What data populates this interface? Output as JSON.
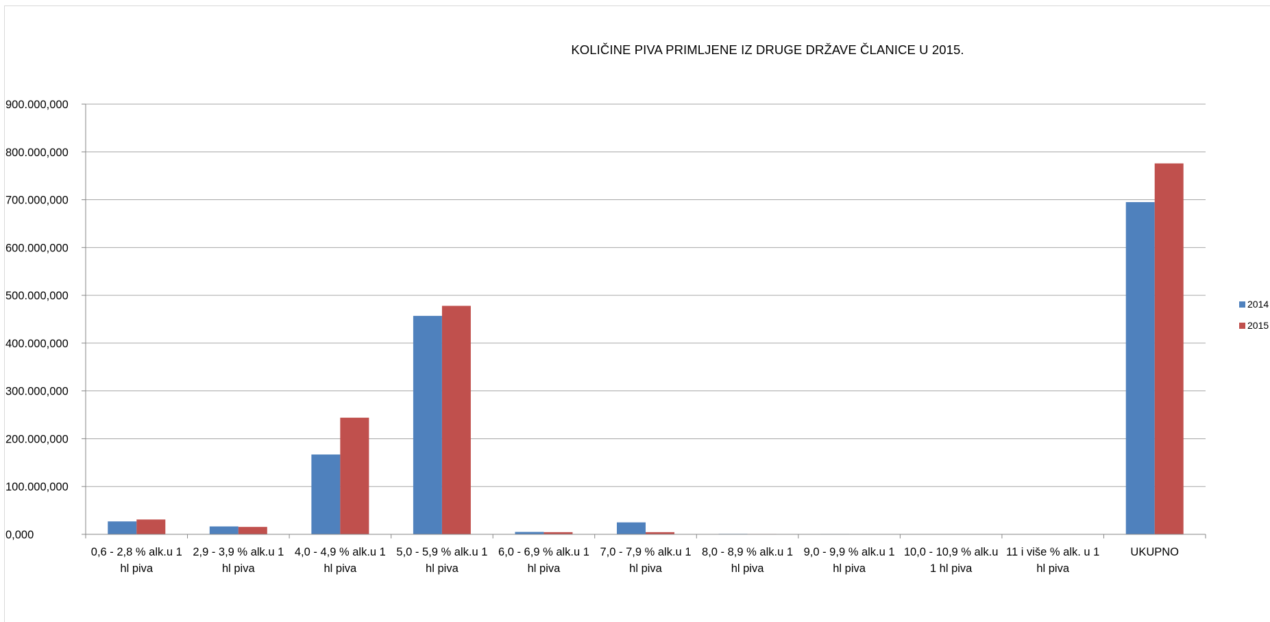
{
  "chart_data": {
    "type": "bar",
    "title": "KOLIČINE PIVA PRIMLJENE IZ DRUGE DRŽAVE ČLANICE  U 2015.",
    "xlabel": "",
    "ylabel": "",
    "ylim": [
      0,
      900000000
    ],
    "yticks": [
      0,
      100000000,
      200000000,
      300000000,
      400000000,
      500000000,
      600000000,
      700000000,
      800000000,
      900000000
    ],
    "ytick_labels": [
      "0,000",
      "100.000,000",
      "200.000,000",
      "300.000,000",
      "400.000,000",
      "500.000,000",
      "600.000,000",
      "700.000,000",
      "800.000,000",
      "900.000,000"
    ],
    "grid": true,
    "legend_position": "right",
    "categories": [
      [
        "0,6 -  2,8 % alk.u 1",
        "hl piva"
      ],
      [
        "2,9 -  3,9 % alk.u 1",
        "hl piva"
      ],
      [
        "4,0 -  4,9 % alk.u 1",
        "hl piva"
      ],
      [
        "5,0 -  5,9 % alk.u 1",
        "hl piva"
      ],
      [
        "6,0 -  6,9 % alk.u 1",
        "hl piva"
      ],
      [
        "7,0 -  7,9 % alk.u 1",
        "hl piva"
      ],
      [
        "8,0 -  8,9 % alk.u 1",
        "hl piva"
      ],
      [
        "9,0 -  9,9 % alk.u 1",
        "hl piva"
      ],
      [
        "10,0 - 10,9 % alk.u",
        "1 hl piva"
      ],
      [
        "11 i više % alk. u 1",
        "hl piva"
      ],
      [
        "UKUPNO"
      ]
    ],
    "series": [
      {
        "name": "2014",
        "color": "#4f81bd",
        "values": [
          27000000,
          16500000,
          167000000,
          457000000,
          5000000,
          25000000,
          1000000,
          800000,
          600000,
          400000,
          695000000
        ]
      },
      {
        "name": "2015",
        "color": "#c0504d",
        "values": [
          31000000,
          15500000,
          244000000,
          478000000,
          4500000,
          4500000,
          800000,
          600000,
          500000,
          300000,
          776000000
        ]
      }
    ]
  }
}
